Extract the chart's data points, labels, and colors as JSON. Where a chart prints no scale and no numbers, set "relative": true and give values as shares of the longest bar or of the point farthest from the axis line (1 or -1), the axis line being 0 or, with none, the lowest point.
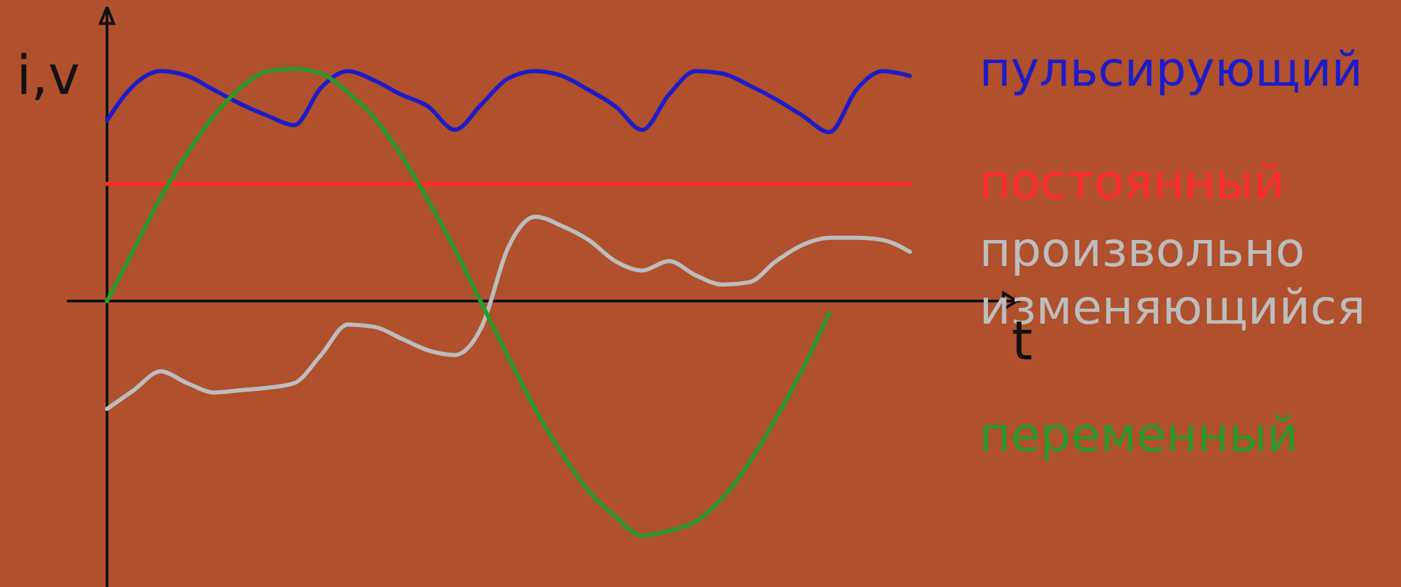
{
  "chart_data": {
    "type": "line",
    "relative": true,
    "xlabel": "t",
    "ylabel": "i,v",
    "line_style": "solid",
    "marker": "none",
    "categories": [
      null,
      null,
      null,
      null,
      null,
      null,
      null,
      null,
      null,
      null,
      null,
      null,
      null,
      null,
      null,
      null,
      null,
      null,
      null,
      null,
      null,
      null,
      null,
      null,
      null,
      null,
      null,
      null,
      null,
      null,
      null
    ],
    "series": [
      {
        "name": "пульсирующий",
        "color": "#1c1cc8",
        "values": [
          0.77,
          0.92,
          0.98,
          0.96,
          0.9,
          0.84,
          0.79,
          0.75,
          0.91,
          0.98,
          0.94,
          0.88,
          0.83,
          0.73,
          0.84,
          0.95,
          0.98,
          0.96,
          0.9,
          0.83,
          0.73,
          0.88,
          0.98,
          0.97,
          0.92,
          0.86,
          0.79,
          0.72,
          0.9,
          0.98,
          0.96
        ]
      },
      {
        "name": "постоянный",
        "color": "#ff2a2a",
        "values": [
          0.5,
          0.5,
          0.5,
          0.5,
          0.5,
          0.5,
          0.5,
          0.5,
          0.5,
          0.5,
          0.5,
          0.5,
          0.5,
          0.5,
          0.5,
          0.5,
          0.5,
          0.5,
          0.5,
          0.5,
          0.5,
          0.5,
          0.5,
          0.5,
          0.5,
          0.5,
          0.5,
          0.5,
          0.5,
          0.5,
          0.5
        ]
      },
      {
        "name": "произвольно изменяющийся",
        "color": "#bdbdbd",
        "values": [
          -0.46,
          -0.38,
          -0.3,
          -0.35,
          -0.39,
          -0.38,
          -0.37,
          -0.35,
          -0.23,
          -0.1,
          -0.11,
          -0.16,
          -0.21,
          -0.23,
          -0.11,
          0.23,
          0.36,
          0.32,
          0.26,
          0.17,
          0.13,
          0.17,
          0.11,
          0.07,
          0.08,
          0.17,
          0.24,
          0.27,
          0.27,
          0.26,
          0.21
        ]
      },
      {
        "name": "переменный",
        "color": "#2a9a2a",
        "values": [
          0,
          0.22,
          0.44,
          0.63,
          0.79,
          0.91,
          0.98,
          0.99,
          0.97,
          0.89,
          0.78,
          0.62,
          0.43,
          0.22,
          -0.01,
          -0.24,
          -0.46,
          -0.65,
          -0.81,
          -0.92,
          -1,
          -0.98,
          -0.94,
          -0.84,
          -0.69,
          -0.5,
          -0.29,
          -0.05,
          null,
          null,
          null
        ]
      }
    ]
  }
}
